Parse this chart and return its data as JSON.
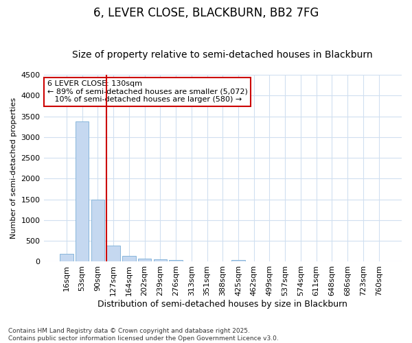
{
  "title": "6, LEVER CLOSE, BLACKBURN, BB2 7FG",
  "subtitle": "Size of property relative to semi-detached houses in Blackburn",
  "xlabel": "Distribution of semi-detached houses by size in Blackburn",
  "ylabel": "Number of semi-detached properties",
  "categories": [
    "16sqm",
    "53sqm",
    "90sqm",
    "127sqm",
    "164sqm",
    "202sqm",
    "239sqm",
    "276sqm",
    "313sqm",
    "351sqm",
    "388sqm",
    "425sqm",
    "462sqm",
    "499sqm",
    "537sqm",
    "574sqm",
    "611sqm",
    "648sqm",
    "686sqm",
    "723sqm",
    "760sqm"
  ],
  "values": [
    190,
    3380,
    1500,
    380,
    140,
    75,
    55,
    40,
    0,
    0,
    0,
    40,
    0,
    0,
    0,
    0,
    0,
    0,
    0,
    0,
    0
  ],
  "bar_color": "#c5d8f0",
  "bar_edge_color": "#7aaed6",
  "vline_x_idx": 3,
  "vline_color": "#cc0000",
  "annotation_text": "6 LEVER CLOSE: 130sqm\n← 89% of semi-detached houses are smaller (5,072)\n   10% of semi-detached houses are larger (580) →",
  "annotation_box_color": "#ffffff",
  "annotation_box_edge": "#cc0000",
  "ylim": [
    0,
    4500
  ],
  "yticks": [
    0,
    500,
    1000,
    1500,
    2000,
    2500,
    3000,
    3500,
    4000,
    4500
  ],
  "footnote": "Contains HM Land Registry data © Crown copyright and database right 2025.\nContains public sector information licensed under the Open Government Licence v3.0.",
  "background_color": "#ffffff",
  "grid_color": "#d0dff0",
  "title_fontsize": 12,
  "subtitle_fontsize": 10,
  "xlabel_fontsize": 9,
  "ylabel_fontsize": 8,
  "tick_fontsize": 8,
  "footnote_fontsize": 6.5
}
